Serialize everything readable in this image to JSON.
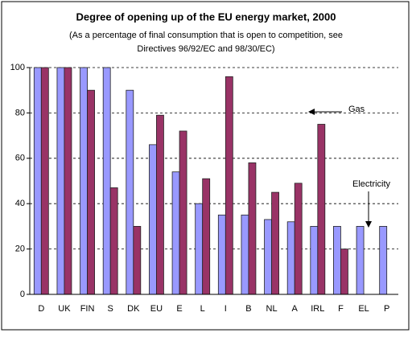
{
  "chart_data": {
    "type": "bar",
    "title": "Degree of opening up of the EU energy market, 2000",
    "subtitle": [
      "(As a percentage of final consumption that is open to competition, see",
      "Directives 96/92/EC and 98/30/EC)"
    ],
    "categories": [
      "D",
      "UK",
      "FIN",
      "S",
      "DK",
      "EU",
      "E",
      "L",
      "I",
      "B",
      "NL",
      "A",
      "IRL",
      "F",
      "EL",
      "P"
    ],
    "series": [
      {
        "name": "Electricity",
        "color": "#9999ff",
        "values": [
          100,
          100,
          100,
          100,
          90,
          66,
          54,
          40,
          35,
          35,
          33,
          32,
          30,
          30,
          30,
          30
        ]
      },
      {
        "name": "Gas",
        "color": "#993366",
        "values": [
          100,
          100,
          90,
          47,
          30,
          79,
          72,
          51,
          96,
          58,
          45,
          49,
          75,
          20,
          null,
          null
        ]
      }
    ],
    "ylim": [
      0,
      100
    ],
    "yticks": [
      0,
      20,
      40,
      60,
      80,
      100
    ],
    "grid": true
  }
}
